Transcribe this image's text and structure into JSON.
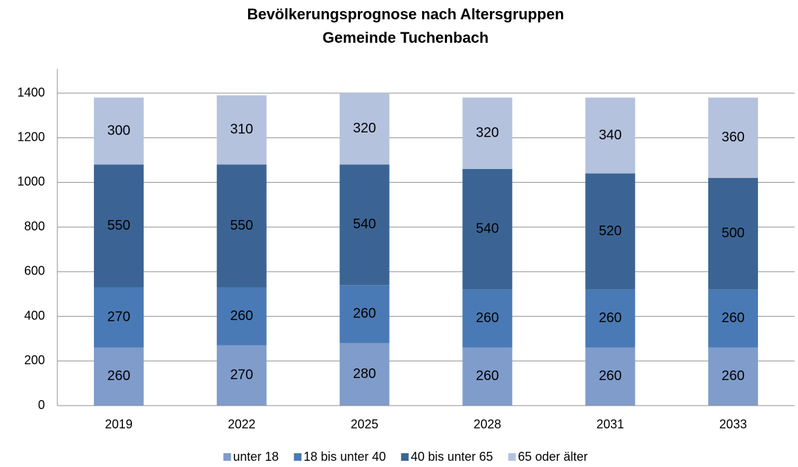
{
  "chart_data": {
    "type": "stacked_bar",
    "title": "Bevölkerungsprognose nach Altersgruppen",
    "subtitle": "Gemeinde Tuchenbach",
    "categories": [
      "2019",
      "2022",
      "2025",
      "2028",
      "2031",
      "2033"
    ],
    "series": [
      {
        "name": "unter 18",
        "color": "#7f9ccb",
        "values": [
          260,
          270,
          280,
          260,
          260,
          260
        ]
      },
      {
        "name": "18 bis unter 40",
        "color": "#4a7ab5",
        "values": [
          270,
          260,
          260,
          260,
          260,
          260
        ]
      },
      {
        "name": "40 bis unter 65",
        "color": "#3b6494",
        "values": [
          550,
          550,
          540,
          540,
          520,
          500
        ]
      },
      {
        "name": "65 oder älter",
        "color": "#b4c2de",
        "values": [
          300,
          310,
          320,
          320,
          340,
          360
        ]
      }
    ],
    "ylim": [
      0,
      1400
    ],
    "yticks": [
      0,
      200,
      400,
      600,
      800,
      1000,
      1200,
      1400
    ],
    "grid": true,
    "legend": "bottom"
  }
}
